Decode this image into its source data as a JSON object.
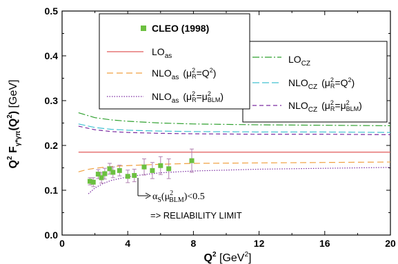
{
  "chart_data": {
    "type": "line",
    "xlim": [
      0,
      20
    ],
    "ylim": [
      0.0,
      0.5
    ],
    "x_ticks": [
      "0",
      "4",
      "8",
      "12",
      "16",
      "20"
    ],
    "y_ticks": [
      "0.0",
      "0.1",
      "0.2",
      "0.3",
      "0.4",
      "0.5"
    ],
    "xlabel": {
      "main": "Q",
      "sup": "2",
      "unit": " [GeV",
      "unit_sup": "2",
      "close": "]"
    },
    "ylabel": {
      "a": "Q",
      "a_sup": "2",
      "b": " F",
      "b_sub": "γ*γπ",
      "c": "(Q",
      "c_sup": "2",
      "d": ")",
      "unit": " [GeV]"
    },
    "legend": {
      "cleo": "CLEO (1998)",
      "lo_as": {
        "main": "LO",
        "sub": "as"
      },
      "nlo_as_q2": {
        "main": "NLO",
        "sub": "as",
        "scale_pre": "(μ",
        "scale_sup": "2",
        "scale_sub": "R",
        "scale_post": "=Q",
        "scale_post_sup": "2",
        "close": ")"
      },
      "nlo_as_blm": {
        "main": "NLO",
        "sub": "as",
        "scale_pre": "(μ",
        "scale_sup": "2",
        "scale_sub": "R",
        "scale_post": "=μ",
        "scale_post_sup": "2",
        "scale_post_sub": "BLM",
        "close": ")"
      },
      "lo_cz": {
        "main": "LO",
        "sub": "CZ"
      },
      "nlo_cz_q2": {
        "main": "NLO",
        "sub": "CZ",
        "scale_pre": "(μ",
        "scale_sup": "2",
        "scale_sub": "R",
        "scale_post": "=Q",
        "scale_post_sup": "2",
        "close": ")"
      },
      "nlo_cz_blm": {
        "main": "NLO",
        "sub": "CZ",
        "scale_pre": "(μ",
        "scale_sup": "2",
        "scale_sub": "R",
        "scale_post": "=μ",
        "scale_post_sup": "2",
        "scale_post_sub": "BLM",
        "close": ")"
      }
    },
    "annotation": {
      "alpha": "α",
      "alpha_sub": "S",
      "open": "(μ",
      "mu_sup": "2",
      "mu_sub": "BLM",
      "close": ")<0.5",
      "limit": "=> RELIABILITY LIMIT"
    },
    "series": [
      {
        "key": "lo_as",
        "color": "#e05a5a",
        "dash": "none",
        "x": [
          1,
          20
        ],
        "y": [
          0.185,
          0.185
        ]
      },
      {
        "key": "nlo_as_q2",
        "color": "#f0a040",
        "dash": "9,5",
        "x": [
          1,
          1.5,
          2,
          3,
          4,
          6,
          8,
          12,
          16,
          20
        ],
        "y": [
          0.141,
          0.146,
          0.149,
          0.153,
          0.155,
          0.158,
          0.16,
          0.161,
          0.162,
          0.163
        ]
      },
      {
        "key": "nlo_as_blm",
        "color": "#7a2aa0",
        "dash": "1.5,2",
        "x": [
          1.6,
          2,
          2.5,
          3,
          4,
          5,
          6,
          8,
          12,
          16,
          20
        ],
        "y": [
          0.092,
          0.105,
          0.115,
          0.122,
          0.13,
          0.135,
          0.139,
          0.143,
          0.147,
          0.149,
          0.151
        ]
      },
      {
        "key": "lo_cz",
        "color": "#2ea02e",
        "dash": "10,3,2,3",
        "x": [
          1,
          2,
          3,
          4,
          6,
          8,
          12,
          16,
          20
        ],
        "y": [
          0.273,
          0.262,
          0.257,
          0.254,
          0.25,
          0.248,
          0.246,
          0.245,
          0.244
        ]
      },
      {
        "key": "nlo_cz_q2",
        "color": "#40c0d0",
        "dash": "10,4",
        "x": [
          1,
          2,
          3,
          4,
          6,
          8,
          12,
          16,
          20
        ],
        "y": [
          0.248,
          0.24,
          0.236,
          0.234,
          0.232,
          0.231,
          0.23,
          0.23,
          0.229
        ]
      },
      {
        "key": "nlo_cz_blm",
        "color": "#7a2aa0",
        "dash": "6,4",
        "x": [
          1,
          2,
          3,
          4,
          6,
          8,
          12,
          16,
          20
        ],
        "y": [
          0.243,
          0.235,
          0.231,
          0.229,
          0.227,
          0.226,
          0.225,
          0.225,
          0.224
        ]
      }
    ],
    "cleo_data": {
      "color": "#6cc040",
      "x": [
        1.7,
        1.9,
        2.2,
        2.4,
        2.6,
        2.9,
        3.1,
        3.5,
        4.0,
        4.4,
        5.0,
        5.5,
        6.0,
        6.5,
        7.9
      ],
      "y": [
        0.12,
        0.118,
        0.136,
        0.128,
        0.137,
        0.148,
        0.14,
        0.144,
        0.131,
        0.133,
        0.152,
        0.144,
        0.155,
        0.148,
        0.166
      ],
      "err": [
        0.008,
        0.01,
        0.01,
        0.012,
        0.012,
        0.012,
        0.012,
        0.012,
        0.014,
        0.014,
        0.018,
        0.018,
        0.02,
        0.022,
        0.026
      ]
    }
  }
}
